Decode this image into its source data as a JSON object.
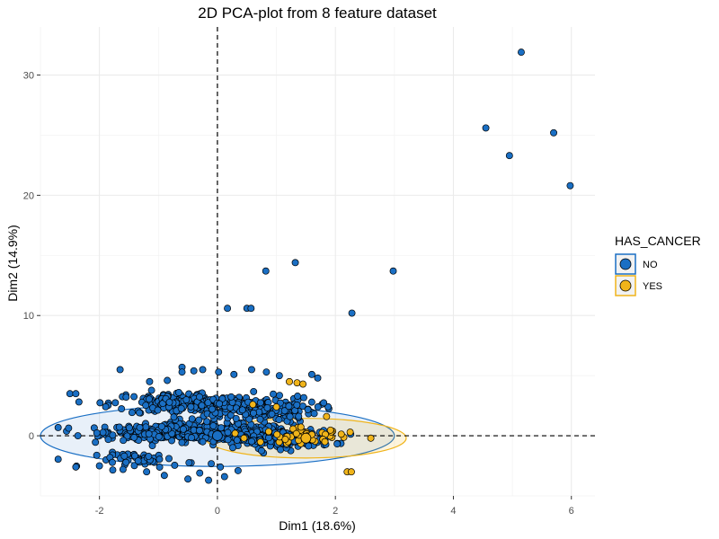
{
  "chart_data": {
    "type": "scatter",
    "title": "2D PCA-plot from 8 feature dataset",
    "xlabel": "Dim1 (18.6%)",
    "ylabel": "Dim2 (14.9%)",
    "xlim": [
      -3.0,
      6.4
    ],
    "ylim": [
      -5.0,
      34.0
    ],
    "x_ticks": [
      -2,
      0,
      2,
      4,
      6
    ],
    "y_ticks": [
      0,
      10,
      20,
      30
    ],
    "x_tick_labels": [
      "-2",
      "0",
      "2",
      "4",
      "6"
    ],
    "y_tick_labels": [
      "0",
      "10",
      "20",
      "30"
    ],
    "grid": true,
    "reference_lines": {
      "x": 0,
      "y": 0,
      "style": "dashed"
    },
    "legend": {
      "title": "HAS_CANCER",
      "position": "right",
      "entries": [
        {
          "label": "NO",
          "color": "#1a6fc4"
        },
        {
          "label": "YES",
          "color": "#f0b41a"
        }
      ]
    },
    "series": [
      {
        "name": "NO",
        "color": "#1a6fc4",
        "outliers": [
          [
            5.15,
            31.9
          ],
          [
            4.55,
            25.6
          ],
          [
            5.7,
            25.2
          ],
          [
            4.95,
            23.3
          ],
          [
            5.98,
            20.8
          ],
          [
            1.32,
            14.4
          ],
          [
            0.82,
            13.7
          ],
          [
            2.98,
            13.7
          ],
          [
            0.17,
            10.6
          ],
          [
            0.5,
            10.6
          ],
          [
            0.57,
            10.6
          ],
          [
            2.28,
            10.2
          ],
          [
            -1.65,
            5.5
          ],
          [
            -0.6,
            5.7
          ],
          [
            -0.6,
            5.3
          ],
          [
            -0.4,
            5.4
          ],
          [
            -0.25,
            5.5
          ],
          [
            0.02,
            5.3
          ],
          [
            0.28,
            5.1
          ],
          [
            0.58,
            5.5
          ],
          [
            0.83,
            5.3
          ],
          [
            1.05,
            5.0
          ],
          [
            1.6,
            5.1
          ],
          [
            1.7,
            4.8
          ],
          [
            -2.5,
            3.5
          ],
          [
            -2.4,
            3.5
          ],
          [
            -1.15,
            4.5
          ],
          [
            -0.85,
            4.6
          ],
          [
            -2.4,
            -2.6
          ],
          [
            -2.0,
            -2.5
          ],
          [
            -1.6,
            -2.8
          ],
          [
            -1.2,
            -3.0
          ],
          [
            -0.9,
            -3.3
          ],
          [
            -0.5,
            -3.6
          ],
          [
            -0.3,
            -3.1
          ],
          [
            -0.15,
            -3.7
          ],
          [
            0.05,
            -2.6
          ],
          [
            0.12,
            -3.4
          ],
          [
            0.35,
            -2.9
          ]
        ],
        "clusters": [
          {
            "center": [
              -0.3,
              0.3
            ],
            "spread": [
              1.3,
              0.55
            ],
            "count": 520
          },
          {
            "center": [
              -0.6,
              2.7
            ],
            "spread": [
              1.0,
              0.8
            ],
            "count": 180
          },
          {
            "center": [
              0.6,
              2.2
            ],
            "spread": [
              0.9,
              0.9
            ],
            "count": 180
          },
          {
            "center": [
              1.0,
              -0.3
            ],
            "spread": [
              0.8,
              0.6
            ],
            "count": 160
          },
          {
            "center": [
              -1.2,
              -2.0
            ],
            "spread": [
              0.7,
              0.5
            ],
            "count": 50
          }
        ],
        "ellipse": {
          "center": [
            0.0,
            0.0
          ],
          "radii": [
            3.0,
            2.55
          ]
        },
        "mean_point": [
          0.0,
          0.0
        ]
      },
      {
        "name": "YES",
        "color": "#f0b41a",
        "outliers": [
          [
            1.22,
            4.5
          ],
          [
            1.35,
            4.4
          ],
          [
            1.45,
            4.3
          ],
          [
            2.2,
            -3.0
          ],
          [
            2.27,
            -3.0
          ],
          [
            0.6,
            2.6
          ],
          [
            1.0,
            2.4
          ],
          [
            1.85,
            1.6
          ],
          [
            2.25,
            0.3
          ],
          [
            2.6,
            -0.2
          ],
          [
            1.6,
            0.1
          ],
          [
            1.15,
            -0.3
          ],
          [
            0.45,
            -0.2
          ],
          [
            0.3,
            0.2
          ]
        ],
        "clusters": [
          {
            "center": [
              1.5,
              0.0
            ],
            "spread": [
              0.6,
              0.5
            ],
            "count": 40
          }
        ],
        "ellipse": {
          "center": [
            1.5,
            -0.2
          ],
          "radii": [
            1.7,
            1.65
          ]
        },
        "mean_point": [
          1.5,
          -0.2
        ]
      }
    ]
  }
}
